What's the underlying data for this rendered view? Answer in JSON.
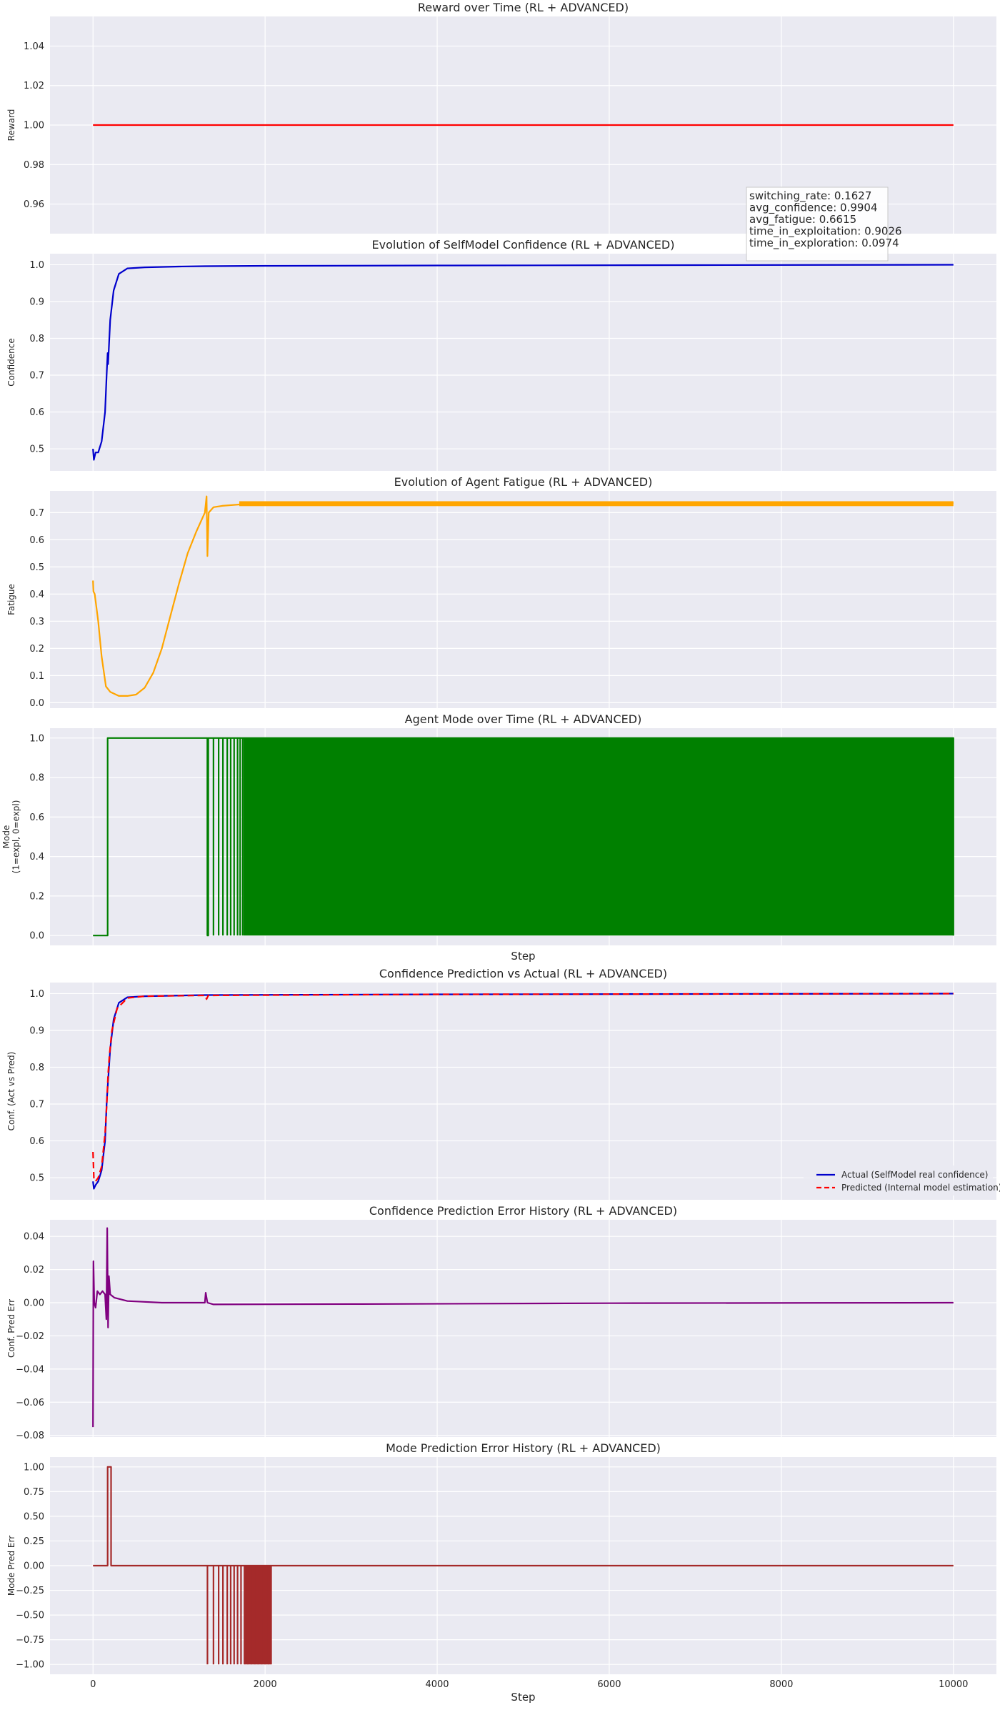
{
  "chart_data": [
    {
      "id": "reward",
      "type": "line",
      "title": "Reward over Time (RL + ADVANCED)",
      "xlabel": "",
      "ylabel": "Reward",
      "xlim": [
        -500,
        10500
      ],
      "ylim": [
        0.945,
        1.055
      ],
      "yticks": [
        0.96,
        0.98,
        1.0,
        1.02,
        1.04
      ],
      "ytick_labels": [
        "0.96",
        "0.98",
        "1.00",
        "1.02",
        "1.04"
      ],
      "grid": true,
      "series": [
        {
          "color": "#ff0000",
          "style": "solid",
          "points": [
            [
              0,
              1.0
            ],
            [
              10000,
              1.0
            ]
          ]
        }
      ]
    },
    {
      "id": "confidence",
      "type": "line",
      "title": "Evolution of SelfModel Confidence (RL + ADVANCED)",
      "xlabel": "",
      "ylabel": "Confidence",
      "xlim": [
        -500,
        10500
      ],
      "ylim": [
        0.44,
        1.03
      ],
      "yticks": [
        0.5,
        0.6,
        0.7,
        0.8,
        0.9,
        1.0
      ],
      "ytick_labels": [
        "0.5",
        "0.6",
        "0.7",
        "0.8",
        "0.9",
        "1.0"
      ],
      "grid": true,
      "series": [
        {
          "color": "#0000cc",
          "style": "solid",
          "points": [
            [
              0,
              0.5
            ],
            [
              10,
              0.47
            ],
            [
              30,
              0.49
            ],
            [
              60,
              0.49
            ],
            [
              100,
              0.52
            ],
            [
              140,
              0.6
            ],
            [
              160,
              0.71
            ],
            [
              170,
              0.76
            ],
            [
              175,
              0.73
            ],
            [
              200,
              0.85
            ],
            [
              240,
              0.93
            ],
            [
              300,
              0.975
            ],
            [
              400,
              0.99
            ],
            [
              600,
              0.993
            ],
            [
              1000,
              0.995
            ],
            [
              1300,
              0.996
            ],
            [
              2000,
              0.997
            ],
            [
              4000,
              0.998
            ],
            [
              7000,
              0.999
            ],
            [
              10000,
              1.0
            ]
          ]
        }
      ]
    },
    {
      "id": "fatigue",
      "type": "line",
      "title": "Evolution of Agent Fatigue (RL + ADVANCED)",
      "xlabel": "",
      "ylabel": "Fatigue",
      "xlim": [
        -500,
        10500
      ],
      "ylim": [
        -0.02,
        0.78
      ],
      "yticks": [
        0.0,
        0.1,
        0.2,
        0.3,
        0.4,
        0.5,
        0.6,
        0.7
      ],
      "ytick_labels": [
        "0.0",
        "0.1",
        "0.2",
        "0.3",
        "0.4",
        "0.5",
        "0.6",
        "0.7"
      ],
      "grid": true,
      "series": [
        {
          "color": "#ffa500",
          "style": "solid",
          "points": [
            [
              0,
              0.45
            ],
            [
              5,
              0.41
            ],
            [
              20,
              0.4
            ],
            [
              60,
              0.3
            ],
            [
              100,
              0.17
            ],
            [
              150,
              0.06
            ],
            [
              200,
              0.04
            ],
            [
              300,
              0.025
            ],
            [
              400,
              0.025
            ],
            [
              500,
              0.03
            ],
            [
              600,
              0.055
            ],
            [
              700,
              0.11
            ],
            [
              800,
              0.2
            ],
            [
              900,
              0.32
            ],
            [
              1000,
              0.44
            ],
            [
              1100,
              0.55
            ],
            [
              1200,
              0.63
            ],
            [
              1300,
              0.7
            ],
            [
              1320,
              0.76
            ],
            [
              1330,
              0.54
            ],
            [
              1345,
              0.7
            ],
            [
              1400,
              0.72
            ],
            [
              1500,
              0.725
            ],
            [
              1700,
              0.73
            ],
            [
              2000,
              0.733
            ],
            [
              4000,
              0.734
            ],
            [
              7000,
              0.735
            ],
            [
              10000,
              0.735
            ]
          ]
        }
      ],
      "band": {
        "color": "#ffa500",
        "from": 1700,
        "to": 10000,
        "low": 0.724,
        "high": 0.742
      }
    },
    {
      "id": "mode",
      "type": "line",
      "title": "Agent Mode over Time (RL + ADVANCED)",
      "xlabel": "Step",
      "ylabel": "Mode\n(1=expl, 0=expl)",
      "xlim": [
        -500,
        10500
      ],
      "ylim": [
        -0.05,
        1.05
      ],
      "yticks": [
        0.0,
        0.2,
        0.4,
        0.6,
        0.8,
        1.0
      ],
      "ytick_labels": [
        "0.0",
        "0.2",
        "0.4",
        "0.6",
        "0.8",
        "1.0"
      ],
      "grid": true,
      "series": [
        {
          "color": "#008000",
          "style": "solid",
          "points": [
            [
              0,
              0
            ],
            [
              170,
              0
            ],
            [
              170,
              1
            ],
            [
              1330,
              1
            ],
            [
              1330,
              0
            ],
            [
              1340,
              0
            ],
            [
              1340,
              1
            ],
            [
              10000,
              1
            ],
            [
              10000,
              0
            ]
          ]
        }
      ],
      "bars": {
        "color": "#008000",
        "low": 0,
        "high": 1,
        "x": [
          1330,
          1400,
          1460,
          1510,
          1560,
          1600,
          1640,
          1680,
          1710,
          1740
        ]
      },
      "band": {
        "color": "#008000",
        "from": 1750,
        "to": 10000,
        "low": 0,
        "high": 1
      }
    },
    {
      "id": "conf_pred",
      "type": "line",
      "title": "Confidence Prediction vs Actual (RL + ADVANCED)",
      "xlabel": "",
      "ylabel": "Conf. (Act vs Pred)",
      "xlim": [
        -500,
        10500
      ],
      "ylim": [
        0.44,
        1.03
      ],
      "yticks": [
        0.5,
        0.6,
        0.7,
        0.8,
        0.9,
        1.0
      ],
      "ytick_labels": [
        "0.5",
        "0.6",
        "0.7",
        "0.8",
        "0.9",
        "1.0"
      ],
      "grid": true,
      "legend": "lower right",
      "series": [
        {
          "name": "Actual (SelfModel real confidence)",
          "color": "#0000cc",
          "style": "solid",
          "points": [
            [
              0,
              0.49
            ],
            [
              10,
              0.47
            ],
            [
              30,
              0.48
            ],
            [
              60,
              0.49
            ],
            [
              100,
              0.52
            ],
            [
              140,
              0.6
            ],
            [
              160,
              0.71
            ],
            [
              200,
              0.85
            ],
            [
              240,
              0.93
            ],
            [
              300,
              0.975
            ],
            [
              400,
              0.99
            ],
            [
              600,
              0.993
            ],
            [
              1300,
              0.996
            ],
            [
              4000,
              0.998
            ],
            [
              10000,
              1.0
            ]
          ]
        },
        {
          "name": "Predicted (Internal model estimation)",
          "color": "#ff0000",
          "style": "dashed",
          "points": [
            [
              0,
              0.57
            ],
            [
              10,
              0.5
            ],
            [
              30,
              0.49
            ],
            [
              60,
              0.5
            ],
            [
              100,
              0.53
            ],
            [
              140,
              0.62
            ],
            [
              160,
              0.7
            ],
            [
              175,
              0.78
            ],
            [
              190,
              0.83
            ],
            [
              220,
              0.9
            ],
            [
              280,
              0.96
            ],
            [
              400,
              0.988
            ],
            [
              600,
              0.993
            ],
            [
              1300,
              0.995
            ],
            [
              1320,
              0.985
            ],
            [
              1340,
              0.995
            ],
            [
              4000,
              0.998
            ],
            [
              10000,
              1.0
            ]
          ]
        }
      ]
    },
    {
      "id": "conf_err",
      "type": "line",
      "title": "Confidence Prediction Error History (RL + ADVANCED)",
      "xlabel": "",
      "ylabel": "Conf. Pred Err",
      "xlim": [
        -500,
        10500
      ],
      "ylim": [
        -0.081,
        0.05
      ],
      "yticks": [
        -0.08,
        -0.06,
        -0.04,
        -0.02,
        0.0,
        0.02,
        0.04
      ],
      "ytick_labels": [
        "−0.08",
        "−0.06",
        "−0.04",
        "−0.02",
        "0.00",
        "0.02",
        "0.04"
      ],
      "grid": true,
      "series": [
        {
          "color": "#800080",
          "style": "solid",
          "points": [
            [
              0,
              -0.075
            ],
            [
              5,
              0.025
            ],
            [
              15,
              0.0
            ],
            [
              30,
              -0.003
            ],
            [
              50,
              0.007
            ],
            [
              80,
              0.005
            ],
            [
              110,
              0.007
            ],
            [
              140,
              0.005
            ],
            [
              155,
              -0.01
            ],
            [
              165,
              0.045
            ],
            [
              175,
              -0.015
            ],
            [
              185,
              0.016
            ],
            [
              200,
              0.005
            ],
            [
              250,
              0.003
            ],
            [
              400,
              0.001
            ],
            [
              800,
              0.0
            ],
            [
              1300,
              0.0
            ],
            [
              1310,
              0.006
            ],
            [
              1330,
              0.0
            ],
            [
              1400,
              -0.001
            ],
            [
              3000,
              -0.0008
            ],
            [
              6000,
              -0.0003
            ],
            [
              10000,
              0.0
            ]
          ]
        }
      ]
    },
    {
      "id": "mode_err",
      "type": "line",
      "title": "Mode Prediction Error History (RL + ADVANCED)",
      "xlabel": "Step",
      "ylabel": "Mode Pred Err",
      "xlim": [
        -500,
        10500
      ],
      "xticks": [
        0,
        2000,
        4000,
        6000,
        8000,
        10000
      ],
      "xtick_labels": [
        "0",
        "2000",
        "4000",
        "6000",
        "8000",
        "10000"
      ],
      "ylim": [
        -1.1,
        1.1
      ],
      "yticks": [
        -1.0,
        -0.75,
        -0.5,
        -0.25,
        0.0,
        0.25,
        0.5,
        0.75,
        1.0
      ],
      "ytick_labels": [
        "−1.00",
        "−0.75",
        "−0.50",
        "−0.25",
        "0.00",
        "0.25",
        "0.50",
        "0.75",
        "1.00"
      ],
      "grid": true,
      "series": [
        {
          "color": "#a52a2a",
          "style": "solid",
          "points": [
            [
              0,
              0
            ],
            [
              170,
              0
            ],
            [
              170,
              1
            ],
            [
              210,
              1
            ],
            [
              210,
              0
            ],
            [
              10000,
              0
            ]
          ]
        }
      ],
      "bars": {
        "color": "#a52a2a",
        "low": -1,
        "high": 0,
        "x": [
          1330,
          1400,
          1460,
          1510,
          1560,
          1600,
          1640,
          1680,
          1720,
          1760,
          1800,
          1840,
          1880,
          1920,
          1960,
          2000,
          2040,
          2070
        ]
      },
      "band": {
        "color": "#a52a2a",
        "from": 1760,
        "to": 2070,
        "low": -1,
        "high": 0
      }
    }
  ],
  "stats_box": {
    "line1": "switching_rate: 0.1627",
    "line2": "avg_confidence: 0.9904",
    "line3": "avg_fatigue: 0.6615",
    "line4": "time_in_exploitation: 0.9026",
    "line5": "time_in_exploration: 0.0974"
  },
  "colors": {
    "axes_bg": "#eaeaf2",
    "grid": "#ffffff",
    "text": "#262626"
  }
}
